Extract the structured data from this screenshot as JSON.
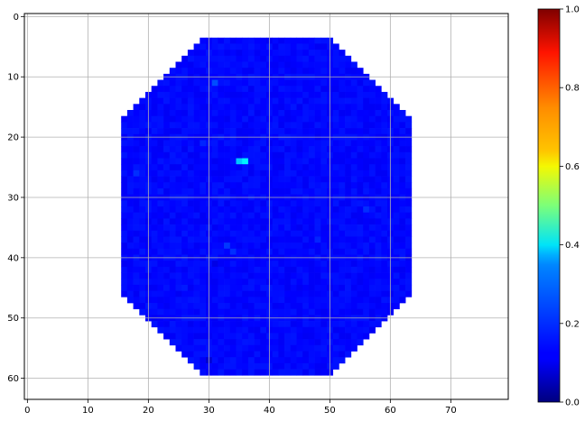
{
  "chart_data": {
    "type": "heatmap",
    "title": "",
    "xlabel": "",
    "ylabel": "",
    "xlim": [
      -0.5,
      79.5
    ],
    "ylim": [
      63.5,
      -0.5
    ],
    "x_ticks": [
      0,
      10,
      20,
      30,
      40,
      50,
      60,
      70
    ],
    "y_ticks": [
      0,
      10,
      20,
      30,
      40,
      50,
      60
    ],
    "grid": true,
    "colormap": "jet",
    "colorbar": {
      "min": 0.0,
      "max": 1.0,
      "ticks": [
        "0.0",
        "0.2",
        "0.4",
        "0.6",
        "0.8",
        "1.0"
      ]
    },
    "background_color": "#ffffff",
    "dominant_value": 0.13,
    "shape": {
      "description": "octagon-like block of cells",
      "row_start": 4,
      "row_end": 59,
      "col_extents_by_row": [
        {
          "rows": [
            4,
            4
          ],
          "cols": [
            29,
            50
          ]
        },
        {
          "rows": [
            5,
            5
          ],
          "cols": [
            28,
            51
          ]
        },
        {
          "rows": [
            6,
            6
          ],
          "cols": [
            27,
            52
          ]
        },
        {
          "rows": [
            7,
            7
          ],
          "cols": [
            26,
            53
          ]
        },
        {
          "rows": [
            8,
            8
          ],
          "cols": [
            25,
            54
          ]
        },
        {
          "rows": [
            9,
            9
          ],
          "cols": [
            24,
            55
          ]
        },
        {
          "rows": [
            10,
            10
          ],
          "cols": [
            23,
            56
          ]
        },
        {
          "rows": [
            11,
            11
          ],
          "cols": [
            22,
            57
          ]
        },
        {
          "rows": [
            12,
            12
          ],
          "cols": [
            21,
            58
          ]
        },
        {
          "rows": [
            13,
            13
          ],
          "cols": [
            20,
            59
          ]
        },
        {
          "rows": [
            14,
            14
          ],
          "cols": [
            19,
            60
          ]
        },
        {
          "rows": [
            15,
            15
          ],
          "cols": [
            18,
            61
          ]
        },
        {
          "rows": [
            16,
            16
          ],
          "cols": [
            17,
            62
          ]
        },
        {
          "rows": [
            17,
            46
          ],
          "cols": [
            16,
            63
          ]
        },
        {
          "rows": [
            47,
            47
          ],
          "cols": [
            17,
            62
          ]
        },
        {
          "rows": [
            48,
            48
          ],
          "cols": [
            18,
            61
          ]
        },
        {
          "rows": [
            49,
            49
          ],
          "cols": [
            19,
            60
          ]
        },
        {
          "rows": [
            50,
            50
          ],
          "cols": [
            20,
            59
          ]
        },
        {
          "rows": [
            51,
            51
          ],
          "cols": [
            21,
            58
          ]
        },
        {
          "rows": [
            52,
            52
          ],
          "cols": [
            22,
            57
          ]
        },
        {
          "rows": [
            53,
            53
          ],
          "cols": [
            23,
            56
          ]
        },
        {
          "rows": [
            54,
            54
          ],
          "cols": [
            24,
            55
          ]
        },
        {
          "rows": [
            55,
            55
          ],
          "cols": [
            25,
            54
          ]
        },
        {
          "rows": [
            56,
            56
          ],
          "cols": [
            26,
            53
          ]
        },
        {
          "rows": [
            57,
            57
          ],
          "cols": [
            27,
            52
          ]
        },
        {
          "rows": [
            58,
            58
          ],
          "cols": [
            28,
            51
          ]
        },
        {
          "rows": [
            59,
            59
          ],
          "cols": [
            29,
            50
          ]
        }
      ]
    },
    "highlight_cells": [
      {
        "row": 24,
        "col": 35,
        "value": 0.32
      },
      {
        "row": 24,
        "col": 36,
        "value": 0.36
      },
      {
        "row": 11,
        "col": 31,
        "value": 0.2
      },
      {
        "row": 38,
        "col": 33,
        "value": 0.18
      },
      {
        "row": 39,
        "col": 34,
        "value": 0.17
      },
      {
        "row": 26,
        "col": 18,
        "value": 0.17
      },
      {
        "row": 32,
        "col": 56,
        "value": 0.17
      },
      {
        "row": 41,
        "col": 31,
        "value": 0.1
      },
      {
        "row": 57,
        "col": 30,
        "value": 0.08
      },
      {
        "row": 21,
        "col": 29,
        "value": 0.16
      },
      {
        "row": 37,
        "col": 48,
        "value": 0.16
      },
      {
        "row": 29,
        "col": 22,
        "value": 0.15
      },
      {
        "row": 45,
        "col": 26,
        "value": 0.15
      }
    ]
  }
}
